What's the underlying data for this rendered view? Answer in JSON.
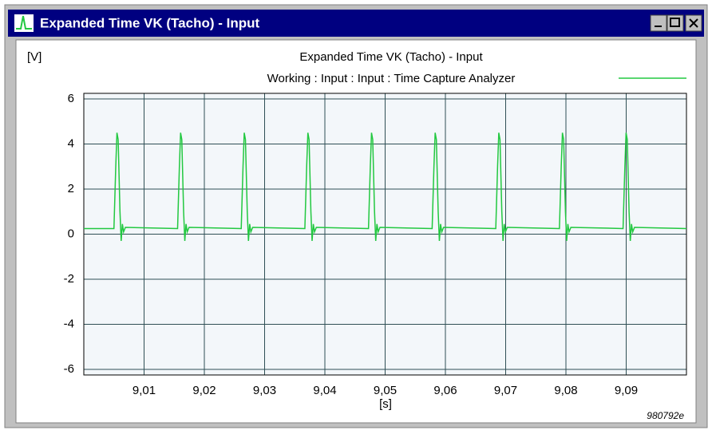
{
  "window_title": "Expanded Time VK (Tacho) - Input",
  "chart_data": {
    "type": "line",
    "title": "Expanded Time VK (Tacho) - Input",
    "ylabel": "[V]",
    "xlabel": "[s]",
    "annotation": "980792e",
    "xlim": [
      9.0,
      9.1
    ],
    "ylim": [
      -6.25,
      6.25
    ],
    "xticks": [
      {
        "value": 9.01,
        "label": "9,01"
      },
      {
        "value": 9.02,
        "label": "9,02"
      },
      {
        "value": 9.03,
        "label": "9,03"
      },
      {
        "value": 9.04,
        "label": "9,04"
      },
      {
        "value": 9.05,
        "label": "9,05"
      },
      {
        "value": 9.06,
        "label": "9,06"
      },
      {
        "value": 9.07,
        "label": "9,07"
      },
      {
        "value": 9.08,
        "label": "9,08"
      },
      {
        "value": 9.09,
        "label": "9,09"
      }
    ],
    "yticks": [
      6,
      4,
      2,
      0,
      -2,
      -4,
      -6
    ],
    "grid": true,
    "legend": "top-right",
    "x": [
      9.0,
      9.005,
      9.0053,
      9.0055,
      9.0057,
      9.006,
      9.0062,
      9.0064,
      9.0066,
      9.0069,
      9.01556,
      9.01586,
      9.01606,
      9.01626,
      9.01656,
      9.01676,
      9.01696,
      9.01716,
      9.01746,
      9.02612,
      9.02642,
      9.02662,
      9.02682,
      9.02712,
      9.02732,
      9.02752,
      9.02772,
      9.02802,
      9.03668,
      9.03698,
      9.03718,
      9.03738,
      9.03768,
      9.03788,
      9.03808,
      9.03828,
      9.03858,
      9.04724,
      9.04754,
      9.04774,
      9.04794,
      9.04824,
      9.04844,
      9.04864,
      9.04884,
      9.04914,
      9.0578,
      9.0581,
      9.0583,
      9.0585,
      9.0588,
      9.059,
      9.0592,
      9.0594,
      9.0597,
      9.06836,
      9.06866,
      9.06886,
      9.06906,
      9.06936,
      9.06956,
      9.06976,
      9.06996,
      9.07026,
      9.07892,
      9.07922,
      9.07942,
      9.07962,
      9.07992,
      9.08012,
      9.08032,
      9.08052,
      9.08082,
      9.08948,
      9.08978,
      9.08998,
      9.09018,
      9.09048,
      9.09068,
      9.09088,
      9.09108,
      9.09138,
      9.1
    ],
    "series": [
      {
        "name": "Working : Input : Input : Time Capture Analyzer",
        "color": "#22c840",
        "values": [
          0.25,
          0.25,
          3.0,
          4.5,
          4.2,
          1.0,
          -0.3,
          0.45,
          0.1,
          0.3,
          0.25,
          3.0,
          4.5,
          4.2,
          1.0,
          -0.3,
          0.45,
          0.1,
          0.3,
          0.25,
          3.0,
          4.5,
          4.2,
          1.0,
          -0.3,
          0.45,
          0.1,
          0.3,
          0.25,
          3.0,
          4.5,
          4.2,
          1.0,
          -0.3,
          0.45,
          0.1,
          0.3,
          0.25,
          3.0,
          4.5,
          4.2,
          1.0,
          -0.3,
          0.45,
          0.1,
          0.3,
          0.25,
          3.0,
          4.5,
          4.2,
          1.0,
          -0.3,
          0.45,
          0.1,
          0.3,
          0.25,
          3.0,
          4.5,
          4.2,
          1.0,
          -0.3,
          0.45,
          0.1,
          0.3,
          0.25,
          3.0,
          4.5,
          4.2,
          1.0,
          -0.3,
          0.45,
          0.1,
          0.3,
          0.25,
          3.0,
          4.5,
          4.2,
          1.0,
          -0.3,
          0.45,
          0.1,
          0.3,
          0.25
        ]
      }
    ]
  }
}
